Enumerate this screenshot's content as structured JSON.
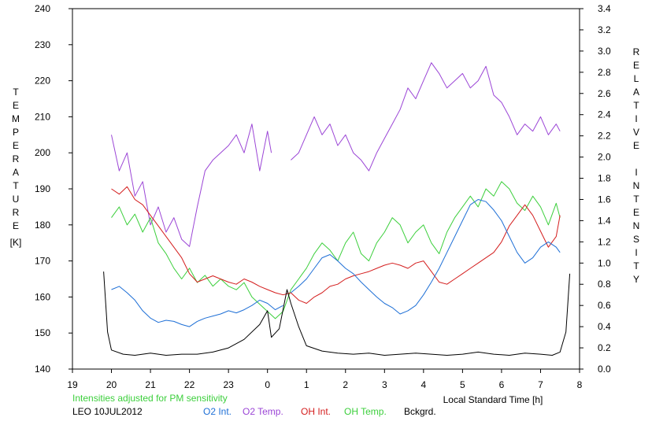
{
  "chart_data": {
    "type": "line",
    "title": "",
    "xlabel": "Local Standard Time [h]",
    "ylabel_left": "TEMPERATURE [K]",
    "ylabel_right": "RELATIVE INTENSITY",
    "left_axis_title": "TEMPERATURE",
    "left_axis_unit": "[K]",
    "right_axis_title": "RELATIVE INTENSITY",
    "x_ticks": [
      "19",
      "20",
      "21",
      "22",
      "23",
      "0",
      "1",
      "2",
      "3",
      "4",
      "5",
      "6",
      "7",
      "8"
    ],
    "left_ticks": [
      "140",
      "150",
      "160",
      "170",
      "180",
      "190",
      "200",
      "210",
      "220",
      "230",
      "240"
    ],
    "right_ticks": [
      "0.0",
      "0.2",
      "0.4",
      "0.6",
      "0.8",
      "1.0",
      "1.2",
      "1.4",
      "1.6",
      "1.8",
      "2.0",
      "2.2",
      "2.4",
      "2.6",
      "2.8",
      "3.0",
      "3.2",
      "3.4"
    ],
    "xlim": [
      19,
      32
    ],
    "ylim_left": [
      140,
      240
    ],
    "ylim_right": [
      0,
      3.4
    ],
    "grid": false,
    "note": "Intensities adjusted for PM sensitivity",
    "station_label": "LEO 10JUL2012",
    "legend_position": "bottom",
    "series": [
      {
        "name": "O2 Int.",
        "axis": "right",
        "color": "#1e6fd6",
        "x": [
          20.0,
          20.2,
          20.4,
          20.6,
          20.8,
          21.0,
          21.2,
          21.4,
          21.6,
          21.8,
          22.0,
          22.2,
          22.4,
          22.6,
          22.8,
          23.0,
          23.2,
          23.4,
          23.6,
          23.8,
          24.0,
          24.2,
          24.4
        ],
        "y": [
          0.75,
          0.78,
          0.72,
          0.65,
          0.55,
          0.48,
          0.44,
          0.46,
          0.45,
          0.42,
          0.4,
          0.45,
          0.48,
          0.5,
          0.52,
          0.55,
          0.53,
          0.56,
          0.6,
          0.65,
          0.62,
          0.56,
          0.6
        ]
      },
      {
        "name": "O2 Int.",
        "axis": "right",
        "color": "#1e6fd6",
        "x": [
          24.6,
          24.8,
          25.0,
          25.2,
          25.4,
          25.6,
          25.8,
          26.0,
          26.2,
          26.4,
          26.6,
          26.8,
          27.0,
          27.2,
          27.4,
          27.6,
          27.8,
          28.0,
          28.2,
          28.4,
          28.6,
          28.8,
          29.0,
          29.2,
          29.4,
          29.6,
          29.8,
          30.0,
          30.2,
          30.4,
          30.6,
          30.8,
          31.0,
          31.2,
          31.4,
          31.5
        ],
        "y": [
          0.72,
          0.78,
          0.85,
          0.95,
          1.05,
          1.08,
          1.02,
          0.95,
          0.9,
          0.82,
          0.75,
          0.68,
          0.62,
          0.58,
          0.52,
          0.55,
          0.6,
          0.7,
          0.82,
          0.95,
          1.1,
          1.25,
          1.4,
          1.55,
          1.6,
          1.58,
          1.5,
          1.4,
          1.25,
          1.1,
          1.0,
          1.05,
          1.15,
          1.2,
          1.15,
          1.1
        ]
      },
      {
        "name": "O2 Temp.",
        "axis": "left",
        "color": "#9b45d6",
        "x": [
          20.0,
          20.2,
          20.4,
          20.6,
          20.8,
          21.0,
          21.2,
          21.4,
          21.6,
          21.8,
          22.0,
          22.2,
          22.4,
          22.6,
          22.8,
          23.0,
          23.2,
          23.4,
          23.6,
          23.8,
          24.0,
          24.1
        ],
        "y": [
          205,
          195,
          200,
          188,
          192,
          180,
          185,
          178,
          182,
          176,
          174,
          185,
          195,
          198,
          200,
          202,
          205,
          200,
          208,
          195,
          206,
          200
        ]
      },
      {
        "name": "O2 Temp.",
        "axis": "left",
        "color": "#9b45d6",
        "x": [
          24.6,
          24.8,
          25.0,
          25.2,
          25.4,
          25.6,
          25.8,
          26.0,
          26.2,
          26.4,
          26.6,
          26.8,
          27.0,
          27.2,
          27.4,
          27.6,
          27.8,
          28.0,
          28.2,
          28.4,
          28.6,
          28.8,
          29.0,
          29.2,
          29.4,
          29.6,
          29.8,
          30.0,
          30.2,
          30.4,
          30.6,
          30.8,
          31.0,
          31.2,
          31.4,
          31.5
        ],
        "y": [
          198,
          200,
          205,
          210,
          205,
          208,
          202,
          205,
          200,
          198,
          195,
          200,
          204,
          208,
          212,
          218,
          215,
          220,
          225,
          222,
          218,
          220,
          222,
          218,
          220,
          224,
          216,
          214,
          210,
          205,
          208,
          206,
          210,
          205,
          208,
          206
        ]
      },
      {
        "name": "OH Int.",
        "axis": "right",
        "color": "#d41e1e",
        "x": [
          20.0,
          20.2,
          20.4,
          20.6,
          20.8,
          21.0,
          21.2,
          21.4,
          21.6,
          21.8,
          22.0,
          22.2,
          22.4,
          22.6,
          22.8,
          23.0,
          23.2,
          23.4,
          23.6,
          23.8,
          24.0,
          24.2,
          24.4,
          24.6,
          24.8,
          25.0,
          25.2,
          25.4,
          25.6,
          25.8,
          26.0,
          26.2,
          26.4,
          26.6,
          26.8,
          27.0,
          27.2,
          27.4,
          27.6,
          27.8,
          28.0,
          28.2,
          28.4,
          28.6,
          28.8,
          29.0,
          29.2,
          29.4,
          29.6,
          29.8,
          30.0,
          30.2,
          30.4,
          30.6,
          30.8,
          31.0,
          31.2,
          31.4,
          31.5
        ],
        "y": [
          1.7,
          1.65,
          1.72,
          1.6,
          1.55,
          1.45,
          1.35,
          1.25,
          1.15,
          1.05,
          0.9,
          0.82,
          0.85,
          0.88,
          0.85,
          0.82,
          0.8,
          0.85,
          0.82,
          0.78,
          0.75,
          0.72,
          0.7,
          0.72,
          0.65,
          0.62,
          0.68,
          0.72,
          0.78,
          0.8,
          0.85,
          0.88,
          0.9,
          0.92,
          0.95,
          0.98,
          1.0,
          0.98,
          0.95,
          1.0,
          1.02,
          0.92,
          0.82,
          0.8,
          0.85,
          0.9,
          0.95,
          1.0,
          1.05,
          1.1,
          1.2,
          1.35,
          1.45,
          1.55,
          1.45,
          1.3,
          1.15,
          1.25,
          1.45
        ]
      },
      {
        "name": "OH Temp.",
        "axis": "left",
        "color": "#3ccf3c",
        "x": [
          20.0,
          20.2,
          20.4,
          20.6,
          20.8,
          21.0,
          21.2,
          21.4,
          21.6,
          21.8,
          22.0,
          22.2,
          22.4,
          22.6,
          22.8,
          23.0,
          23.2,
          23.4,
          23.6,
          23.8,
          24.0,
          24.2,
          24.4,
          24.6,
          24.8,
          25.0,
          25.2,
          25.4,
          25.6,
          25.8,
          26.0,
          26.2,
          26.4,
          26.6,
          26.8,
          27.0,
          27.2,
          27.4,
          27.6,
          27.8,
          28.0,
          28.2,
          28.4,
          28.6,
          28.8,
          29.0,
          29.2,
          29.4,
          29.6,
          29.8,
          30.0,
          30.2,
          30.4,
          30.6,
          30.8,
          31.0,
          31.2,
          31.4,
          31.5
        ],
        "y": [
          182,
          185,
          180,
          183,
          178,
          182,
          175,
          172,
          168,
          165,
          168,
          164,
          166,
          163,
          165,
          163,
          162,
          164,
          160,
          158,
          156,
          154,
          156,
          162,
          165,
          168,
          172,
          175,
          173,
          170,
          175,
          178,
          172,
          170,
          175,
          178,
          182,
          180,
          175,
          178,
          180,
          175,
          172,
          178,
          182,
          185,
          188,
          185,
          190,
          188,
          192,
          190,
          186,
          184,
          188,
          185,
          180,
          186,
          182
        ]
      },
      {
        "name": "Bckgrd.",
        "axis": "right",
        "color": "#000000",
        "x": [
          19.8,
          19.9,
          20.0,
          20.3,
          20.6,
          21.0,
          21.4,
          21.8,
          22.2,
          22.6,
          23.0,
          23.4,
          23.8,
          24.0,
          24.1,
          24.3,
          24.5,
          24.6,
          24.8,
          25.0,
          25.4,
          25.8,
          26.2,
          26.6,
          27.0,
          27.4,
          27.8,
          28.2,
          28.6,
          29.0,
          29.4,
          29.8,
          30.2,
          30.6,
          31.0,
          31.3,
          31.5,
          31.65,
          31.75
        ],
        "y": [
          0.92,
          0.35,
          0.18,
          0.14,
          0.13,
          0.15,
          0.13,
          0.14,
          0.14,
          0.16,
          0.2,
          0.28,
          0.42,
          0.55,
          0.3,
          0.38,
          0.75,
          0.62,
          0.4,
          0.22,
          0.17,
          0.15,
          0.14,
          0.15,
          0.13,
          0.14,
          0.15,
          0.14,
          0.13,
          0.14,
          0.16,
          0.14,
          0.13,
          0.15,
          0.14,
          0.13,
          0.16,
          0.35,
          0.9
        ]
      }
    ]
  }
}
